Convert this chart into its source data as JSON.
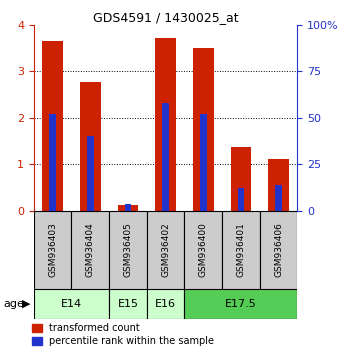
{
  "title": "GDS4591 / 1430025_at",
  "samples": [
    "GSM936403",
    "GSM936404",
    "GSM936405",
    "GSM936402",
    "GSM936400",
    "GSM936401",
    "GSM936406"
  ],
  "transformed_counts": [
    3.65,
    2.76,
    0.12,
    3.72,
    3.5,
    1.38,
    1.12
  ],
  "percentile_ranks_pct": [
    52,
    40,
    3.5,
    58,
    52,
    12,
    14
  ],
  "age_groups": [
    {
      "label": "E14",
      "start": 0,
      "end": 2,
      "color": "#ccffcc"
    },
    {
      "label": "E15",
      "start": 2,
      "end": 3,
      "color": "#ccffcc"
    },
    {
      "label": "E16",
      "start": 3,
      "end": 4,
      "color": "#ccffcc"
    },
    {
      "label": "E17.5",
      "start": 4,
      "end": 7,
      "color": "#55cc55"
    }
  ],
  "ylim_left": [
    0,
    4
  ],
  "ylim_right": [
    0,
    100
  ],
  "yticks_left": [
    0,
    1,
    2,
    3,
    4
  ],
  "yticks_right": [
    0,
    25,
    50,
    75,
    100
  ],
  "bar_color_red": "#cc2200",
  "bar_color_blue": "#2233cc",
  "red_bar_width": 0.55,
  "blue_bar_width": 0.18,
  "legend_red": "transformed count",
  "legend_blue": "percentile rank within the sample",
  "age_label": "age",
  "left_ycolor": "#cc2200",
  "right_ycolor": "#2233cc",
  "bg_color": "#ffffff",
  "sample_bg": "#cccccc",
  "plot_bg": "#ffffff"
}
